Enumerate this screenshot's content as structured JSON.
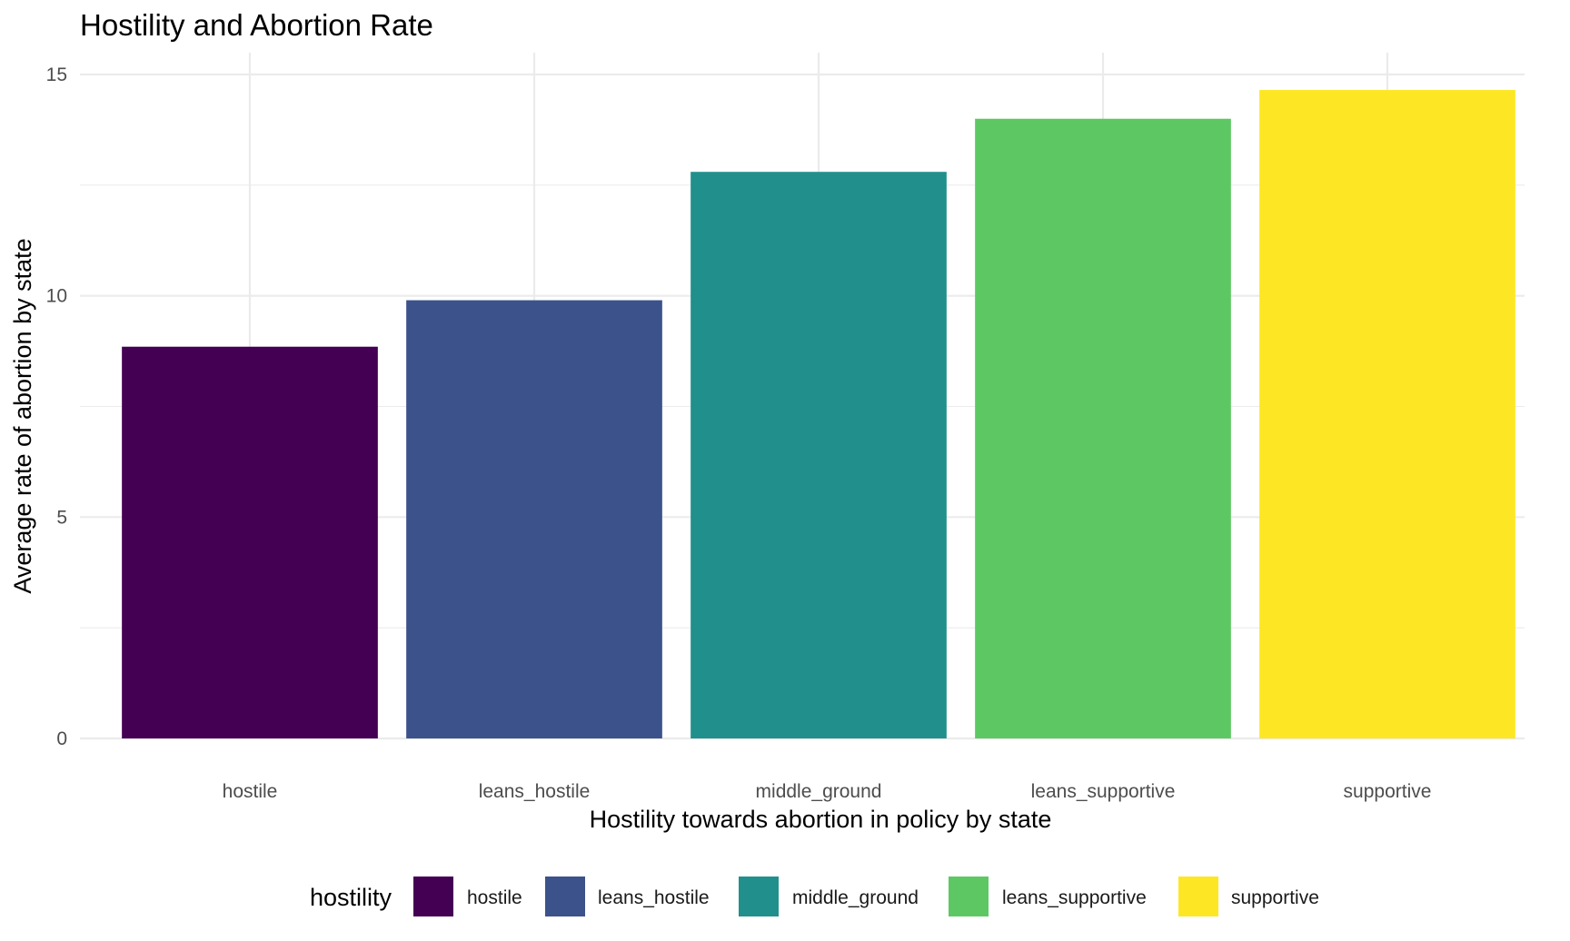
{
  "chart_data": {
    "type": "bar",
    "title": "Hostility and Abortion Rate",
    "xlabel": "Hostility towards abortion in policy by state",
    "ylabel": "Average rate of abortion by state",
    "categories": [
      "hostile",
      "leans_hostile",
      "middle_ground",
      "leans_supportive",
      "supportive"
    ],
    "values": [
      8.85,
      9.9,
      12.8,
      14.0,
      14.65
    ],
    "colors": [
      "#440154",
      "#3B528B",
      "#21908C",
      "#5DC863",
      "#FDE725"
    ],
    "ylim": [
      0,
      15
    ],
    "yticks": [
      0,
      5,
      10,
      15
    ],
    "grid": true,
    "legend": {
      "title": "hostility",
      "position": "bottom",
      "items": [
        "hostile",
        "leans_hostile",
        "middle_ground",
        "leans_supportive",
        "supportive"
      ]
    }
  }
}
